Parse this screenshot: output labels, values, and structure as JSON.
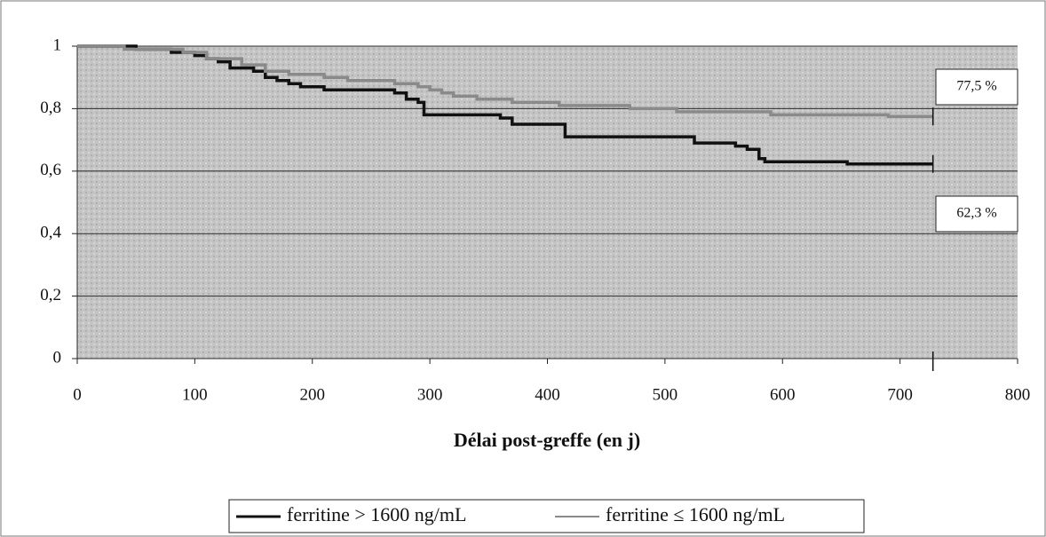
{
  "chart_data": {
    "type": "line",
    "xlabel": "Délai post-greffe (en j)",
    "xlim": [
      0,
      800
    ],
    "xticks": [
      0,
      100,
      200,
      300,
      400,
      500,
      600,
      700,
      800
    ],
    "ylim": [
      0,
      1
    ],
    "yticks": [
      0,
      {
        "value": 0.2,
        "label": "0,2"
      },
      {
        "value": 0.4,
        "label": "0,4"
      },
      {
        "value": 0.6,
        "label": "0,6"
      },
      {
        "value": 0.8,
        "label": "0,8"
      },
      1
    ],
    "grid": true,
    "legend": "bottom",
    "series": [
      {
        "name": "ferritine > 1600 ng/mL",
        "color": "#111111",
        "x": [
          0,
          50,
          50,
          80,
          80,
          100,
          100,
          110,
          110,
          120,
          120,
          130,
          130,
          150,
          150,
          160,
          160,
          170,
          170,
          180,
          180,
          190,
          190,
          210,
          210,
          270,
          270,
          280,
          280,
          290,
          290,
          295,
          295,
          360,
          360,
          370,
          370,
          415,
          415,
          525,
          525,
          560,
          560,
          570,
          570,
          580,
          580,
          585,
          585,
          655,
          655,
          728
        ],
        "values": [
          1,
          1,
          0.99,
          0.99,
          0.98,
          0.98,
          0.97,
          0.97,
          0.96,
          0.96,
          0.95,
          0.95,
          0.93,
          0.93,
          0.92,
          0.92,
          0.9,
          0.9,
          0.89,
          0.89,
          0.88,
          0.88,
          0.87,
          0.87,
          0.86,
          0.86,
          0.85,
          0.85,
          0.83,
          0.83,
          0.82,
          0.82,
          0.78,
          0.78,
          0.77,
          0.77,
          0.75,
          0.75,
          0.71,
          0.71,
          0.69,
          0.69,
          0.68,
          0.68,
          0.67,
          0.67,
          0.64,
          0.64,
          0.63,
          0.63,
          0.623,
          0.623
        ]
      },
      {
        "name": "ferritine ≤ 1600 ng/mL",
        "color": "#8a8a8a",
        "x": [
          0,
          40,
          40,
          90,
          90,
          110,
          110,
          140,
          140,
          160,
          160,
          180,
          180,
          210,
          210,
          230,
          230,
          270,
          270,
          290,
          290,
          300,
          300,
          310,
          310,
          320,
          320,
          340,
          340,
          370,
          370,
          410,
          410,
          470,
          470,
          510,
          510,
          590,
          590,
          690,
          690,
          728
        ],
        "values": [
          1,
          1,
          0.99,
          0.99,
          0.98,
          0.98,
          0.96,
          0.96,
          0.94,
          0.94,
          0.92,
          0.92,
          0.91,
          0.91,
          0.9,
          0.9,
          0.89,
          0.89,
          0.88,
          0.88,
          0.87,
          0.87,
          0.86,
          0.86,
          0.85,
          0.85,
          0.84,
          0.84,
          0.83,
          0.83,
          0.82,
          0.82,
          0.81,
          0.81,
          0.8,
          0.8,
          0.79,
          0.79,
          0.78,
          0.78,
          0.775,
          0.775
        ]
      }
    ],
    "annotations": [
      "77,5 %",
      "62,3 %"
    ]
  }
}
